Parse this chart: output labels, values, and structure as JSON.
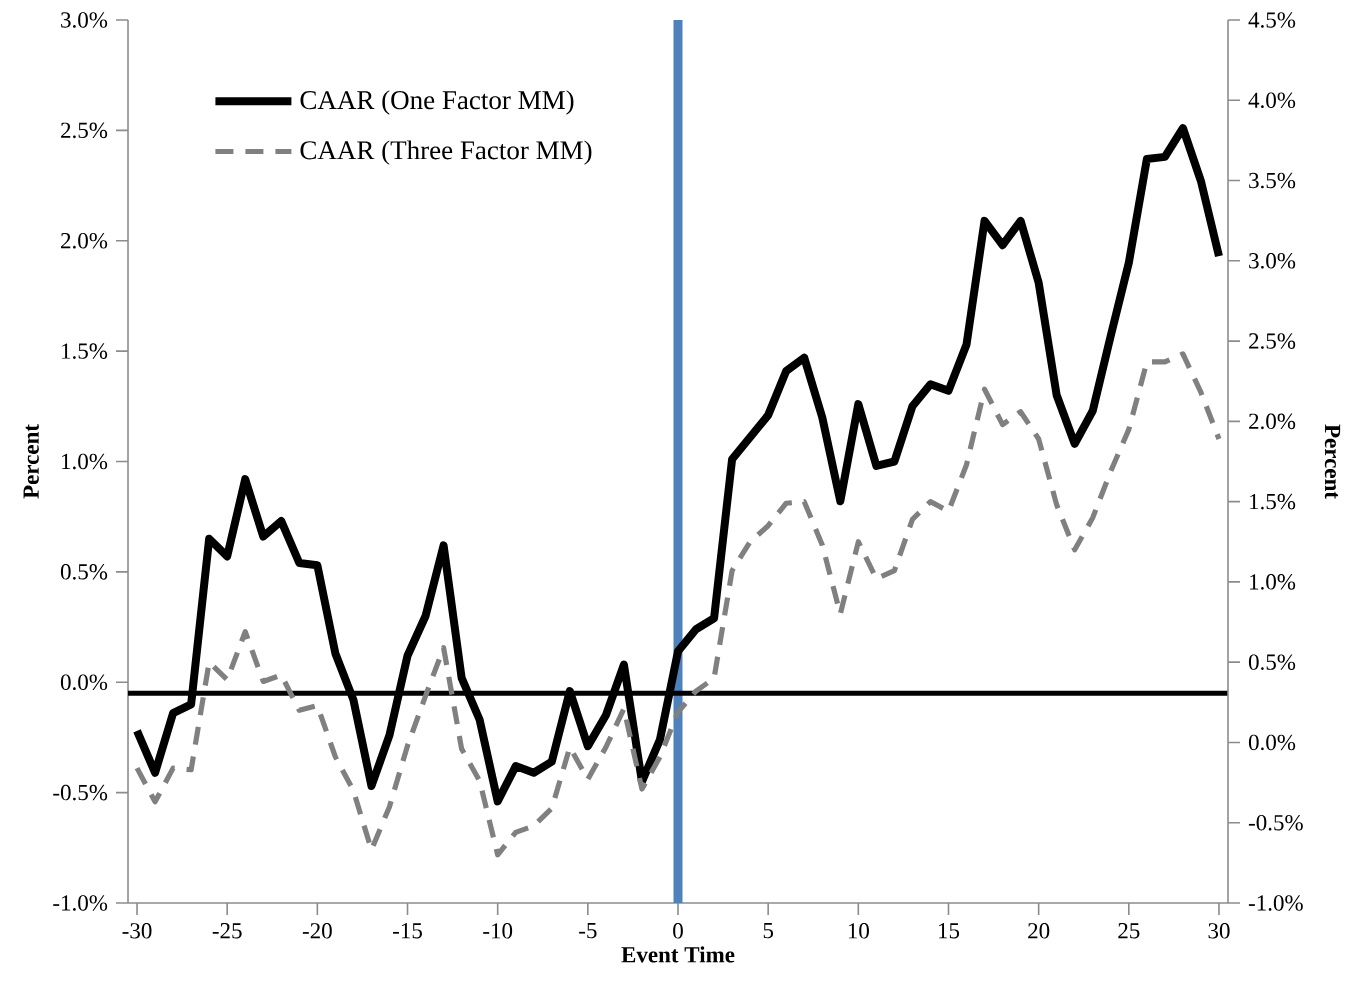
{
  "chart_data": {
    "type": "line",
    "xlabel": "Event Time",
    "ylabel": "Percent",
    "y2label": "Percent",
    "x": [
      -30,
      -29,
      -28,
      -27,
      -26,
      -25,
      -24,
      -23,
      -22,
      -21,
      -20,
      -19,
      -18,
      -17,
      -16,
      -15,
      -14,
      -13,
      -12,
      -11,
      -10,
      -9,
      -8,
      -7,
      -6,
      -5,
      -4,
      -3,
      -2,
      -1,
      0,
      1,
      2,
      3,
      4,
      5,
      6,
      7,
      8,
      9,
      10,
      11,
      12,
      13,
      14,
      15,
      16,
      17,
      18,
      19,
      20,
      21,
      22,
      23,
      24,
      25,
      26,
      27,
      28,
      29,
      30
    ],
    "series": [
      {
        "name": "CAAR (One Factor MM)",
        "color": "#000000",
        "line_style": "solid",
        "axis": "y",
        "values": [
          -0.22,
          -0.41,
          -0.14,
          -0.1,
          0.65,
          0.57,
          0.92,
          0.66,
          0.73,
          0.54,
          0.53,
          0.13,
          -0.08,
          -0.47,
          -0.24,
          0.12,
          0.3,
          0.62,
          0.02,
          -0.17,
          -0.54,
          -0.38,
          -0.41,
          -0.36,
          -0.04,
          -0.29,
          -0.15,
          0.08,
          -0.45,
          -0.26,
          0.14,
          0.24,
          0.29,
          1.01,
          1.11,
          1.21,
          1.41,
          1.47,
          1.2,
          0.82,
          1.26,
          0.98,
          1.0,
          1.25,
          1.35,
          1.32,
          1.53,
          2.09,
          1.98,
          2.09,
          1.81,
          1.3,
          1.08,
          1.23,
          1.57,
          1.9,
          2.37,
          2.38,
          2.51,
          2.27,
          1.93
        ]
      },
      {
        "name": "CAAR (Three Factor MM)",
        "color": "#808080",
        "line_style": "dashed",
        "axis": "y2",
        "values": [
          -0.16,
          -0.37,
          -0.16,
          -0.17,
          0.5,
          0.39,
          0.69,
          0.38,
          0.42,
          0.2,
          0.23,
          -0.09,
          -0.3,
          -0.67,
          -0.4,
          -0.02,
          0.29,
          0.59,
          -0.04,
          -0.24,
          -0.7,
          -0.56,
          -0.52,
          -0.41,
          -0.03,
          -0.23,
          -0.03,
          0.21,
          -0.29,
          -0.09,
          0.19,
          0.32,
          0.4,
          1.07,
          1.25,
          1.35,
          1.49,
          1.5,
          1.23,
          0.8,
          1.25,
          1.02,
          1.07,
          1.39,
          1.5,
          1.44,
          1.73,
          2.2,
          1.98,
          2.06,
          1.89,
          1.48,
          1.2,
          1.4,
          1.69,
          1.95,
          2.37,
          2.37,
          2.42,
          2.18,
          1.89
        ]
      }
    ],
    "xlim": [
      -30.5,
      30.5
    ],
    "xticks": [
      -30,
      -25,
      -20,
      -15,
      -10,
      -5,
      0,
      5,
      10,
      15,
      20,
      25,
      30
    ],
    "ylim": [
      -1,
      3
    ],
    "yticks": [
      {
        "value": -1,
        "label": "-1.0%"
      },
      {
        "value": -0.5,
        "label": "-0.5%"
      },
      {
        "value": 0,
        "label": "0.0%"
      },
      {
        "value": 0.5,
        "label": "0.5%"
      },
      {
        "value": 1,
        "label": "1.0%"
      },
      {
        "value": 1.5,
        "label": "1.5%"
      },
      {
        "value": 2,
        "label": "2.0%"
      },
      {
        "value": 2.5,
        "label": "2.5%"
      },
      {
        "value": 3,
        "label": "3.0%"
      }
    ],
    "y2lim": [
      -1,
      4.5
    ],
    "y2ticks": [
      {
        "value": -1,
        "label": "-1.0%"
      },
      {
        "value": -0.5,
        "label": "-0.5%"
      },
      {
        "value": 0,
        "label": "0.0%"
      },
      {
        "value": 0.5,
        "label": "0.5%"
      },
      {
        "value": 1,
        "label": "1.0%"
      },
      {
        "value": 1.5,
        "label": "1.5%"
      },
      {
        "value": 2,
        "label": "2.0%"
      },
      {
        "value": 2.5,
        "label": "2.5%"
      },
      {
        "value": 3,
        "label": "3.0%"
      },
      {
        "value": 3.5,
        "label": "3.5%"
      },
      {
        "value": 4,
        "label": "4.0%"
      },
      {
        "value": 4.5,
        "label": "4.5%"
      }
    ],
    "ref_lines": [
      {
        "axis": "x",
        "value": 0,
        "color": "#4f81bd"
      },
      {
        "axis": "y",
        "value": -0.05,
        "color": "#000000"
      }
    ],
    "legend": "top left"
  }
}
